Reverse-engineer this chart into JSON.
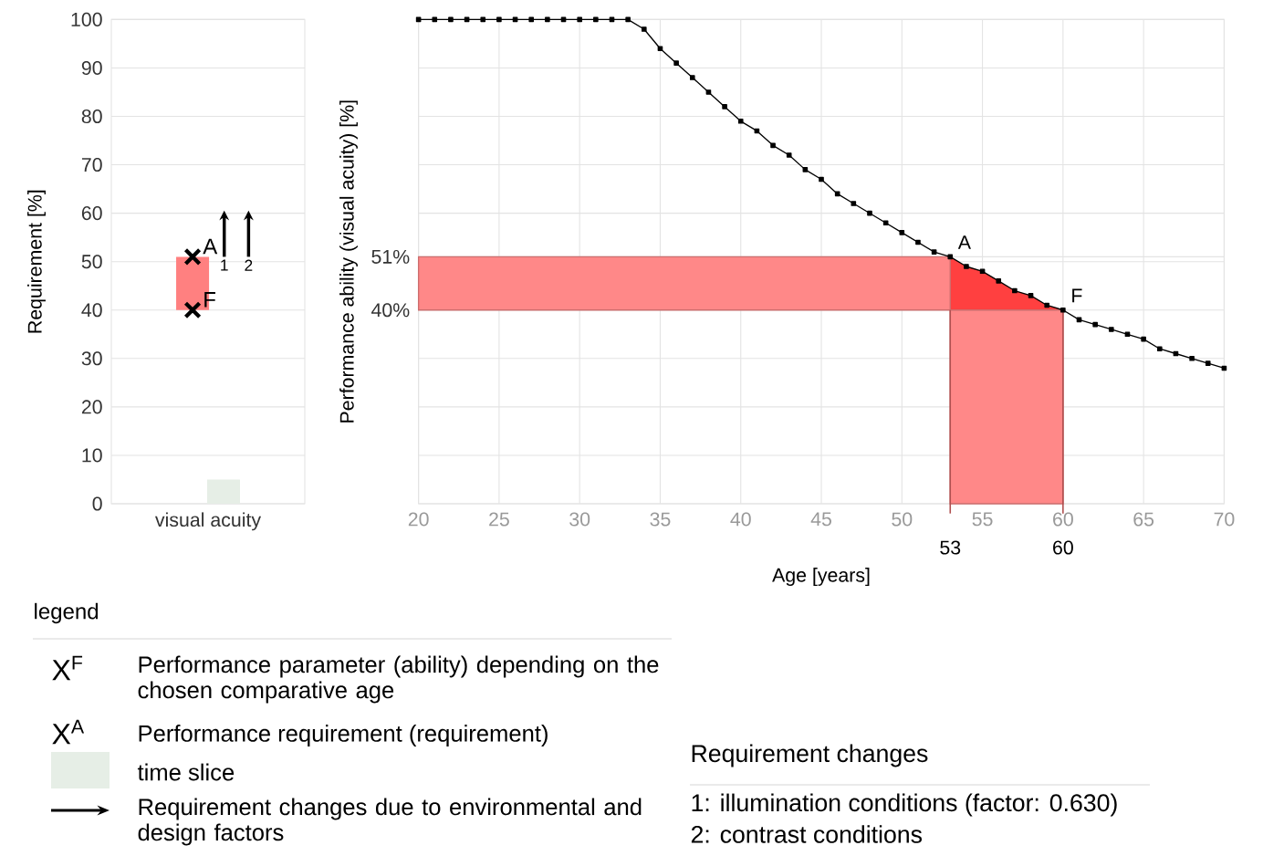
{
  "chart_data": [
    {
      "type": "bar",
      "ylabel": "Requirement [%]",
      "categories": [
        "visual acuity"
      ],
      "ylim": [
        0,
        100
      ],
      "yticks": [
        0,
        10,
        20,
        30,
        40,
        50,
        60,
        70,
        80,
        90,
        100
      ],
      "grid": "y",
      "series": [
        {
          "type": "bar",
          "color": "#ff8080",
          "values": [
            11
          ],
          "base": [
            40
          ]
        },
        {
          "type": "bar",
          "color": "#e6eee6",
          "values": [
            5
          ]
        },
        {
          "type": "scatter",
          "color": "#000000",
          "x": [
            "visual acuity"
          ],
          "values": [
            51
          ],
          "marker": "cross"
        },
        {
          "type": "scatter",
          "color": "#000000",
          "x": [
            "visual acuity"
          ],
          "values": [
            40
          ],
          "marker": "cross"
        }
      ],
      "annotations": [
        {
          "text": "A",
          "x": "visual acuity",
          "y": 51
        },
        {
          "text": "F",
          "x": "visual acuity",
          "y": 40
        },
        {
          "text": "1",
          "x": "visual acuity",
          "y": 51
        },
        {
          "text": "2",
          "x": "visual acuity",
          "y": 51
        }
      ]
    },
    {
      "type": "line",
      "xlabel": "Age [years]",
      "ylabel": "Performance ability (visual acuity) [%]",
      "xlim": [
        20,
        70
      ],
      "ylim": [
        0,
        100
      ],
      "xticks": [
        20,
        25,
        30,
        35,
        40,
        45,
        50,
        55,
        60,
        65,
        70
      ],
      "yticks": [
        {
          "value": 0,
          "label": null
        },
        {
          "value": 10,
          "label": null
        },
        {
          "value": 20,
          "label": null
        },
        {
          "value": 30,
          "label": null
        },
        {
          "value": 40,
          "label": "40%"
        },
        {
          "value": 50,
          "label": null
        },
        {
          "value": 51,
          "label": "51%"
        },
        {
          "value": 60,
          "label": null
        },
        {
          "value": 70,
          "label": null
        },
        {
          "value": 80,
          "label": null
        },
        {
          "value": 90,
          "label": null
        },
        {
          "value": 100,
          "label": null
        }
      ],
      "grid": true,
      "marker": "square",
      "series": [
        {
          "type": "area",
          "color": "#ff4040",
          "marker": "none",
          "x": [
            53,
            54,
            55,
            56,
            57,
            58,
            59,
            60
          ],
          "values": [
            51,
            49,
            48,
            46,
            44,
            43,
            41,
            40
          ]
        },
        {
          "type": "line",
          "color": "#000000",
          "x": [
            20,
            21,
            22,
            23,
            24,
            25,
            26,
            27,
            28,
            29,
            30,
            31,
            32,
            33,
            34,
            35,
            36,
            37,
            38,
            39,
            40,
            41,
            42,
            43,
            44,
            45,
            46,
            47,
            48,
            49,
            50,
            51,
            52,
            53,
            54,
            55,
            56,
            57,
            58,
            59,
            60,
            61,
            62,
            63,
            64,
            65,
            66,
            67,
            68,
            69,
            70
          ],
          "values": [
            100,
            100,
            100,
            100,
            100,
            100,
            100,
            100,
            100,
            100,
            100,
            100,
            100,
            100,
            98,
            94,
            91,
            88,
            85,
            82,
            79,
            77,
            74,
            72,
            69,
            67,
            64,
            62,
            60,
            58,
            56,
            54,
            52,
            51,
            49,
            48,
            46,
            44,
            43,
            41,
            40,
            38,
            37,
            36,
            35,
            34,
            32,
            31,
            30,
            29,
            28
          ]
        }
      ],
      "bands": [
        {
          "axis": "y",
          "from": 40,
          "to": 51,
          "color": "#ff8888"
        },
        {
          "axis": "x",
          "from": 53,
          "to": 60,
          "color": "#ff8888"
        }
      ],
      "ref_lines": [
        {
          "axis": "x",
          "value": 53,
          "label": "53"
        },
        {
          "axis": "x",
          "value": 60,
          "label": "60"
        }
      ],
      "annotations": [
        {
          "text": "A",
          "x": 53,
          "y": 51
        },
        {
          "text": "F",
          "x": 60,
          "y": 40
        }
      ]
    },
    {
      "type": "other",
      "title": "legend",
      "annotations": [
        "X$^{F}$",
        "Performance parameter (ability) depending on the chosen comparative age",
        "X$^{A}$",
        "Performance requirement (requirement)",
        "time slice",
        "Requirement changes due to environmental and design factors"
      ]
    },
    {
      "type": "other",
      "title": "Requirement changes",
      "annotations": [
        "1: illumination conditions (factor: 0.630)",
        "2: contrast conditions"
      ]
    }
  ]
}
